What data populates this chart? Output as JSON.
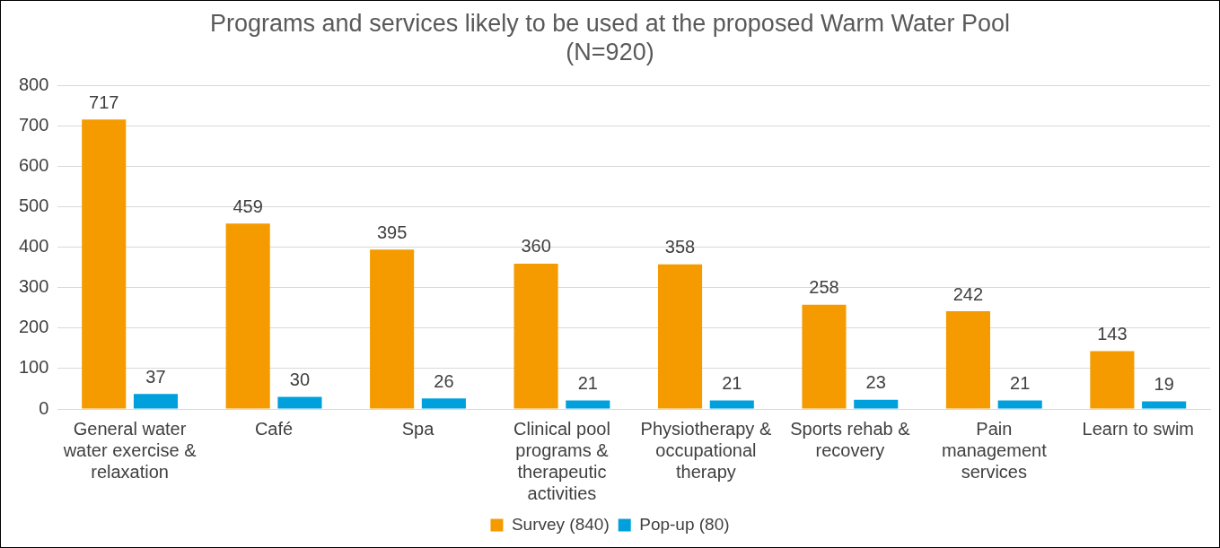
{
  "chart_data": {
    "type": "bar",
    "title": "Programs and services likely to be used at the proposed Warm Water Pool",
    "subtitle": "(N=920)",
    "categories": [
      "General water water exercise & relaxation",
      "Café",
      "Spa",
      "Clinical pool programs & therapeutic activities",
      "Physiotherapy & occupational therapy",
      "Sports rehab & recovery",
      "Pain management services",
      "Learn to swim"
    ],
    "series": [
      {
        "name": "Survey (840)",
        "color": "#f59b00",
        "values": [
          717,
          459,
          395,
          360,
          358,
          258,
          242,
          143
        ]
      },
      {
        "name": "Pop-up (80)",
        "color": "#00a0dc",
        "values": [
          37,
          30,
          26,
          21,
          21,
          23,
          21,
          19
        ]
      }
    ],
    "ylim": [
      0,
      800
    ],
    "yticks": [
      0,
      100,
      200,
      300,
      400,
      500,
      600,
      700,
      800
    ],
    "grid": "y",
    "legend": "bottom",
    "data_labels": true
  }
}
